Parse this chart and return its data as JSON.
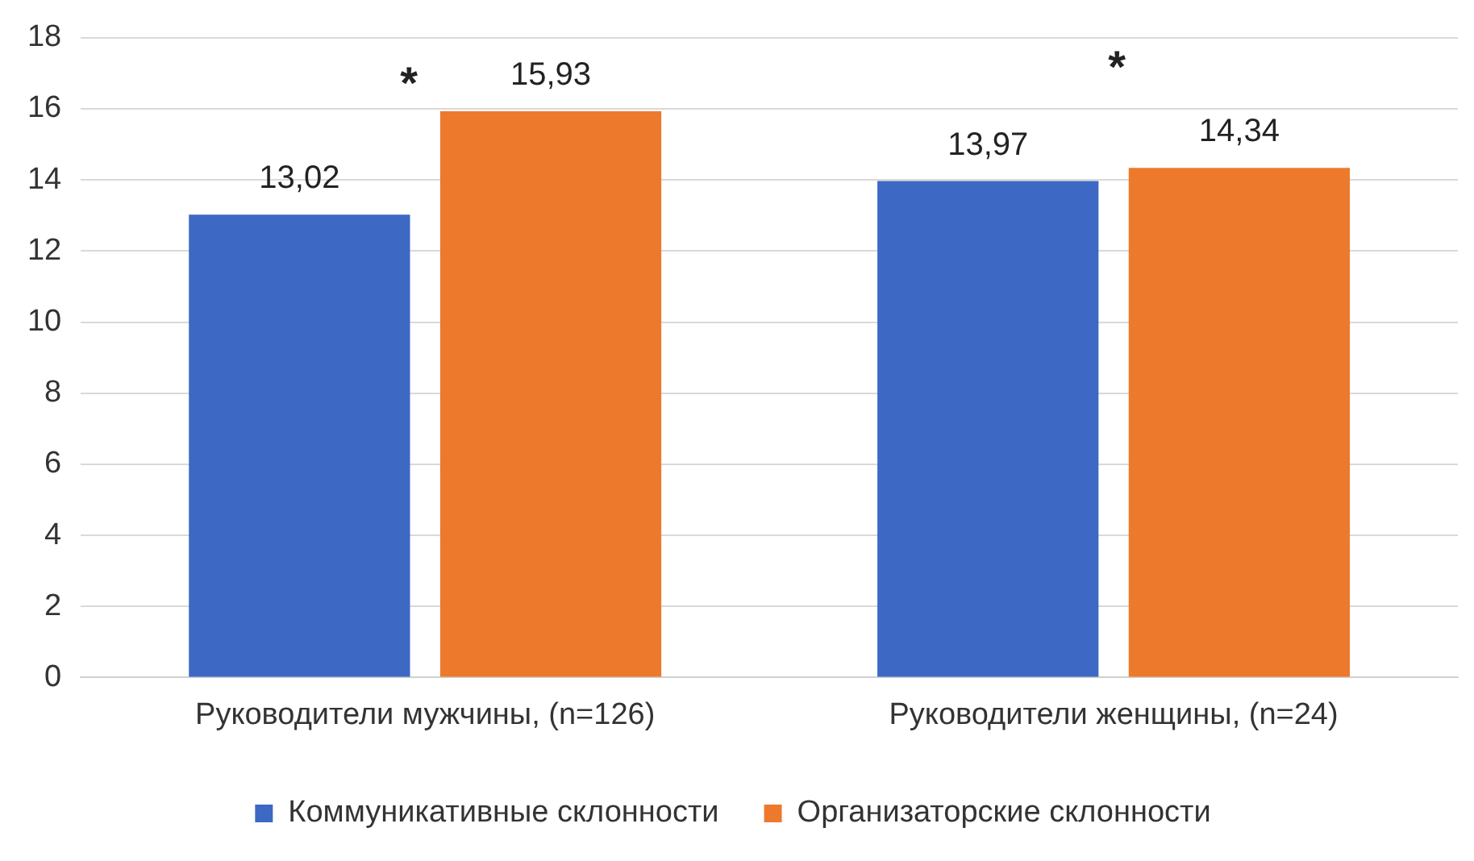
{
  "chart_data": {
    "type": "bar",
    "categories": [
      "Руководители мужчины, (n=126)",
      "Руководители женщины, (n=24)"
    ],
    "series": [
      {
        "name": "Коммуникативные склонности",
        "color": "#3d69c4",
        "values": [
          13.02,
          13.97
        ],
        "value_labels": [
          "13,02",
          "13,97"
        ]
      },
      {
        "name": "Организаторские склонности",
        "color": "#ed7a2c",
        "values": [
          15.93,
          14.34
        ],
        "value_labels": [
          "15,93",
          "14,34"
        ]
      }
    ],
    "ylim": [
      0,
      18
    ],
    "yticks": [
      0,
      2,
      4,
      6,
      8,
      10,
      12,
      14,
      16,
      18
    ],
    "grid": "y",
    "legend": "bottom",
    "annotations": [
      "*",
      "*"
    ]
  }
}
